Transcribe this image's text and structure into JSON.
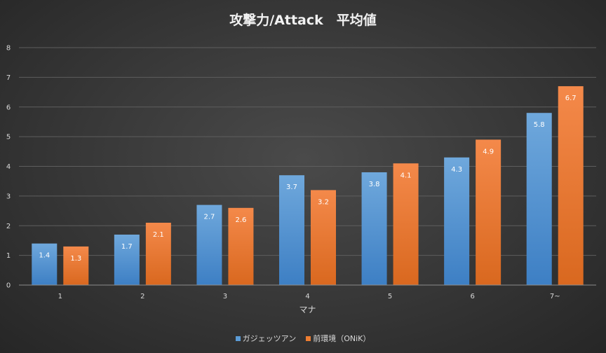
{
  "chart_data": {
    "type": "bar",
    "title": "攻撃力/Attack　平均値",
    "xlabel": "マナ",
    "ylabel": "",
    "categories": [
      "1",
      "2",
      "3",
      "4",
      "5",
      "6",
      "7~"
    ],
    "ylim": [
      0,
      8
    ],
    "yticks": [
      "0",
      "1",
      "2",
      "3",
      "4",
      "5",
      "6",
      "7",
      "8"
    ],
    "grid": true,
    "legend_position": "bottom",
    "series": [
      {
        "name": "ガジェッツアン",
        "values": [
          1.4,
          1.7,
          2.7,
          3.7,
          3.8,
          4.3,
          5.8
        ],
        "color": "#5b9bd5"
      },
      {
        "name": "前環境（ONiK）",
        "values": [
          1.3,
          2.1,
          2.6,
          3.2,
          4.1,
          4.9,
          6.7
        ],
        "color": "#ed7d31"
      }
    ]
  }
}
